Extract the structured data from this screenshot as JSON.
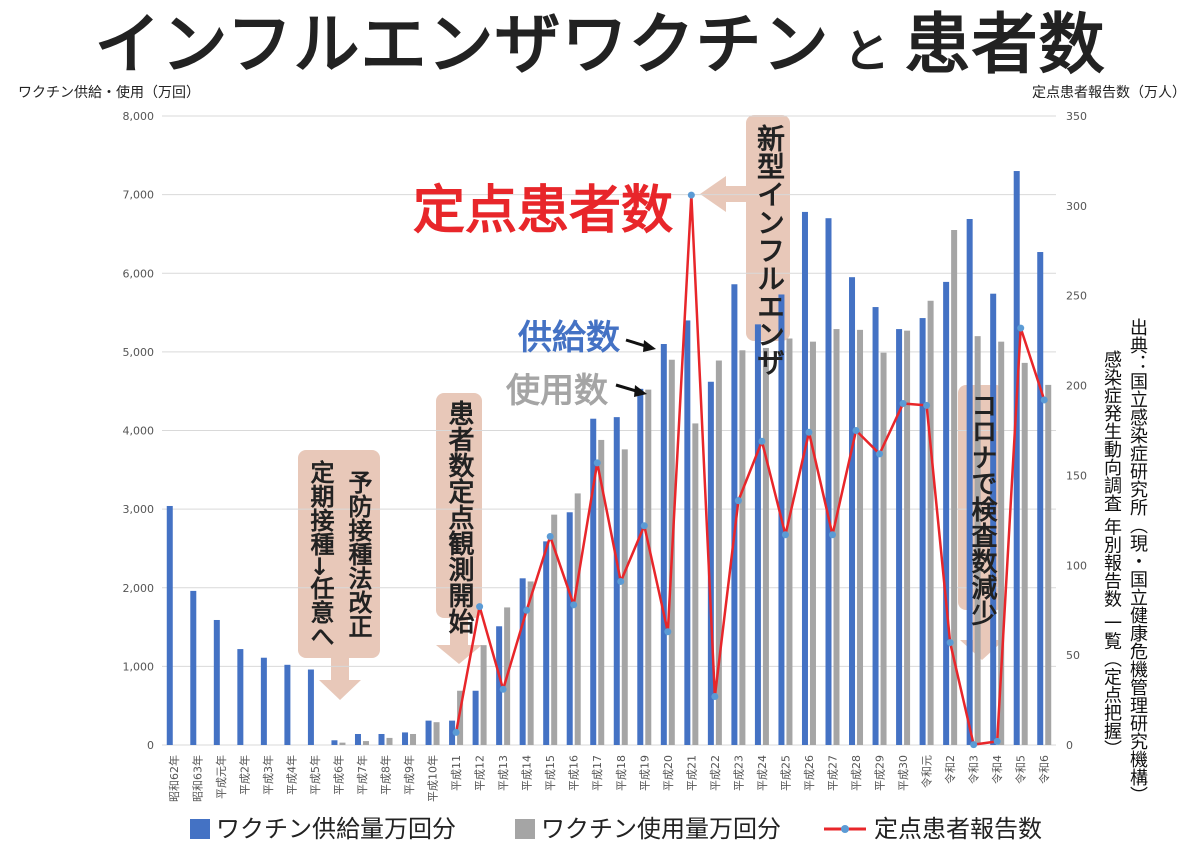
{
  "title": {
    "part1": "インフルエンザワクチン",
    "conj": "と",
    "part2": "患者数"
  },
  "left_axis_label": "ワクチン供給・使用（万回）",
  "right_axis_label": "定点患者報告数（万人）",
  "annotations": {
    "teiten": "定点患者数",
    "kyokyu": "供給数",
    "shiyo": "使用数",
    "shingata": "新型インフルエンザ",
    "kansoku": "患者数定点観測開始",
    "yobou_line1": "予防接種法改正",
    "yobou_line2": "定期接種→任意へ",
    "corona": "コロナで検査数減少"
  },
  "source": {
    "line1": "出典：国立感染症研究所（現・国立健康危機管理研究機構）",
    "line2": "感染症発生動向調査 年別報告数 一覧（定点把握）"
  },
  "colors": {
    "supply": "#4472c4",
    "usage": "#a5a5a5",
    "patients": "#e8262a",
    "callout_bg": "#e8c8b9",
    "callout_text": "#e8262a",
    "grid": "#d9d9d9"
  },
  "chart_data": {
    "type": "bar",
    "categories": [
      "昭和62年",
      "昭和63年",
      "平成元年",
      "平成2年",
      "平成3年",
      "平成4年",
      "平成5年",
      "平成6年",
      "平成7年",
      "平成8年",
      "平成9年",
      "平成10年",
      "平成11",
      "平成12",
      "平成13",
      "平成14",
      "平成15",
      "平成16",
      "平成17",
      "平成18",
      "平成19",
      "平成20",
      "平成21",
      "平成22",
      "平成23",
      "平成24",
      "平成25",
      "平成26",
      "平成27",
      "平成28",
      "平成29",
      "平成30",
      "令和元",
      "令和2",
      "令和3",
      "令和4",
      "令和5",
      "令和6"
    ],
    "series": [
      {
        "name": "ワクチン供給量万回分",
        "axis": "left",
        "values": [
          3040,
          1960,
          1590,
          1220,
          1110,
          1020,
          960,
          60,
          140,
          140,
          160,
          310,
          310,
          690,
          1510,
          2120,
          2590,
          2960,
          4150,
          4170,
          4530,
          5100,
          5400,
          4620,
          5860,
          5350,
          5730,
          6780,
          6700,
          5950,
          5570,
          5290,
          5430,
          5890,
          6690,
          5740,
          7300,
          6270
        ]
      },
      {
        "name": "ワクチン使用量万回分",
        "axis": "left",
        "values": [
          null,
          null,
          null,
          null,
          null,
          null,
          null,
          30,
          50,
          90,
          140,
          290,
          690,
          1270,
          1750,
          2080,
          2930,
          3200,
          3880,
          3760,
          4520,
          4900,
          4090,
          4890,
          5020,
          5050,
          5170,
          5130,
          5290,
          5280,
          4990,
          5270,
          5650,
          6550,
          5200,
          5130,
          4860,
          4580
        ]
      },
      {
        "name": "定点患者報告数",
        "axis": "right",
        "values": [
          null,
          null,
          null,
          null,
          null,
          null,
          null,
          null,
          null,
          null,
          null,
          null,
          7,
          77,
          31,
          75,
          116,
          78,
          157,
          91,
          122,
          63,
          306,
          27,
          136,
          169,
          117,
          174,
          117,
          175,
          162,
          190,
          189,
          57,
          0.2,
          2,
          232,
          192
        ]
      }
    ],
    "ylim_left": [
      0,
      8000
    ],
    "yticks_left": [
      0,
      1000,
      2000,
      3000,
      4000,
      5000,
      6000,
      7000,
      8000
    ],
    "ytick_labels_left": [
      "0",
      "1,000",
      "2,000",
      "3,000",
      "4,000",
      "5,000",
      "6,000",
      "7,000",
      "8,000"
    ],
    "ylim_right": [
      0,
      350
    ],
    "yticks_right": [
      0,
      50,
      100,
      150,
      200,
      250,
      300,
      350
    ],
    "grid": true,
    "legend": "bottom"
  }
}
